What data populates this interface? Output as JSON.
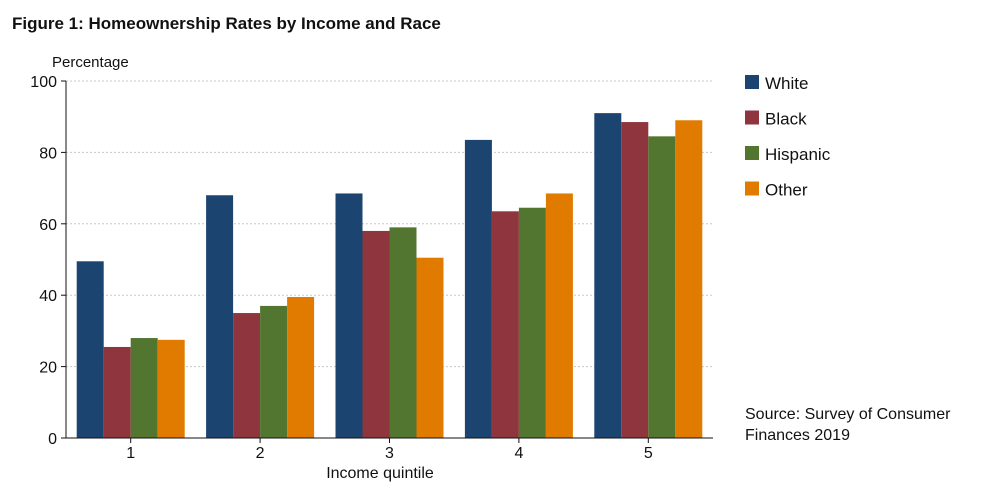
{
  "chart_data": {
    "type": "bar",
    "title": "Figure 1: Homeownership Rates by Income and Race",
    "ylabel": "Percentage",
    "xlabel": "Income quintile",
    "categories": [
      "1",
      "2",
      "3",
      "4",
      "5"
    ],
    "ylim": [
      0,
      100
    ],
    "yticks": [
      0,
      20,
      40,
      60,
      80,
      100
    ],
    "grid": true,
    "legend_position": "right",
    "series": [
      {
        "name": "White",
        "color": "#1b4570",
        "values": [
          49.5,
          68,
          68.5,
          83.5,
          91
        ]
      },
      {
        "name": "Black",
        "color": "#8e353d",
        "values": [
          25.5,
          35,
          58,
          63.5,
          88.5
        ]
      },
      {
        "name": "Hispanic",
        "color": "#527530",
        "values": [
          28,
          37,
          59,
          64.5,
          84.5
        ]
      },
      {
        "name": "Other",
        "color": "#e07b00",
        "values": [
          27.5,
          39.5,
          50.5,
          68.5,
          89
        ]
      }
    ],
    "source_lines": [
      "Source: Survey of Consumer",
      "Finances 2019"
    ]
  }
}
